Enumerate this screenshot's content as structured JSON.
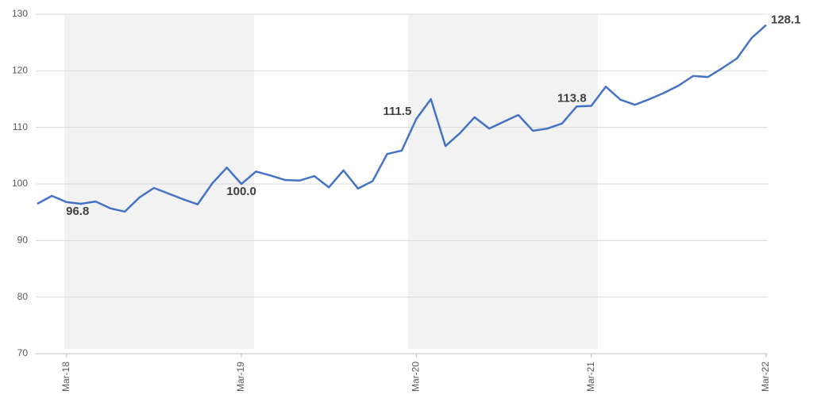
{
  "chart_data": {
    "type": "line",
    "categories": [
      null,
      null,
      "Mar-18",
      null,
      null,
      null,
      null,
      null,
      null,
      null,
      null,
      null,
      null,
      null,
      "Mar-19",
      null,
      null,
      null,
      null,
      null,
      null,
      null,
      null,
      null,
      null,
      null,
      "Mar-20",
      null,
      null,
      null,
      null,
      null,
      null,
      null,
      null,
      null,
      null,
      null,
      "Mar-21",
      null,
      null,
      null,
      null,
      null,
      null,
      null,
      null,
      null,
      null,
      null,
      "Mar-22"
    ],
    "series": [
      {
        "color": "#4472c4",
        "values": [
          96.5,
          97.9,
          96.8,
          96.5,
          96.9,
          95.7,
          95.1,
          97.6,
          99.3,
          98.3,
          97.3,
          96.4,
          100.1,
          102.9,
          100.0,
          102.2,
          101.5,
          100.7,
          100.6,
          101.4,
          99.4,
          102.4,
          99.2,
          100.5,
          105.3,
          105.9,
          111.5,
          115.0,
          106.7,
          109.0,
          111.8,
          109.8,
          111.0,
          112.2,
          109.4,
          109.8,
          110.7,
          113.7,
          113.8,
          117.2,
          114.9,
          114.0,
          115.0,
          116.1,
          117.4,
          119.1,
          118.9,
          120.5,
          122.2,
          125.8,
          128.1
        ],
        "value_labels": [
          null,
          null,
          "96.8",
          null,
          null,
          null,
          null,
          null,
          null,
          null,
          null,
          null,
          null,
          null,
          "100.0",
          null,
          null,
          null,
          null,
          null,
          null,
          null,
          null,
          null,
          null,
          null,
          "111.5",
          null,
          null,
          null,
          null,
          null,
          null,
          null,
          null,
          null,
          null,
          null,
          "113.8",
          null,
          null,
          null,
          null,
          null,
          null,
          null,
          null,
          null,
          null,
          null,
          "128.1"
        ]
      }
    ],
    "ylim": [
      70,
      130
    ],
    "yticks": [
      70,
      80,
      90,
      100,
      110,
      120,
      130
    ],
    "grid": true
  }
}
